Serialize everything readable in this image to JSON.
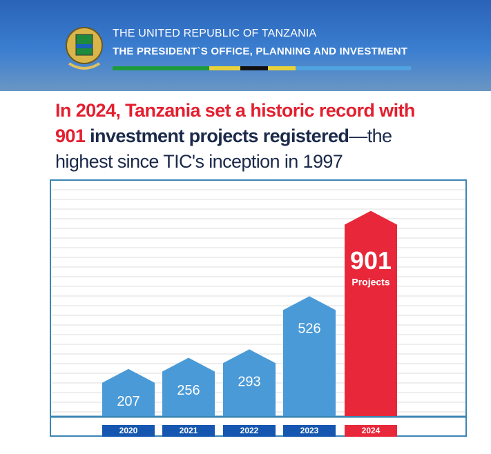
{
  "header": {
    "line1": "THE UNITED REPUBLIC OF TANZANIA",
    "line2": "THE PRESIDENT`S OFFICE, PLANNING AND INVESTMENT"
  },
  "headline": [
    [
      {
        "text": "In 2024, Tanzania set a historic record with",
        "color": "#e31f2f",
        "bold": true
      }
    ],
    [
      {
        "text": "901",
        "color": "#e31f2f",
        "bold": true
      },
      {
        "text": " investment projects registered",
        "color": "#1b2a4a",
        "bold": true
      },
      {
        "text": "—the",
        "color": "#1b2a4a",
        "bold": false
      }
    ],
    [
      {
        "text": "highest since TIC's inception in 1997",
        "color": "#1b2a4a",
        "bold": false
      }
    ]
  ],
  "chart_data": {
    "type": "bar",
    "categories": [
      "2020",
      "2021",
      "2022",
      "2023",
      "2024"
    ],
    "values": [
      207,
      256,
      293,
      526,
      901
    ],
    "colors": [
      "#4a9ad8",
      "#4a9ad8",
      "#4a9ad8",
      "#4a9ad8",
      "#e8283a"
    ],
    "label_colors": [
      "#1557b0",
      "#1557b0",
      "#1557b0",
      "#1557b0",
      "#e8283a"
    ],
    "unit_label": "Projects"
  }
}
